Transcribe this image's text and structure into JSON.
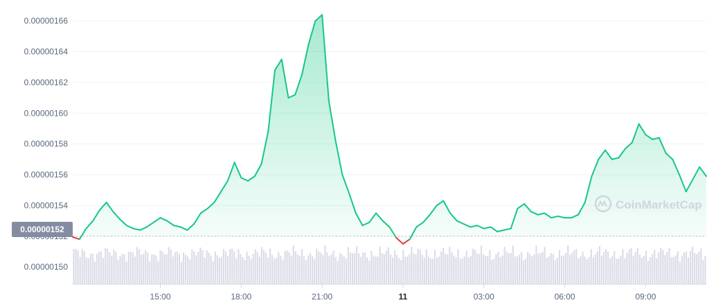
{
  "chart_data": {
    "type": "area",
    "title": "",
    "xlabel": "",
    "ylabel": "",
    "y_ticks": [
      "0.00000150",
      "0.00000152",
      "0.00000154",
      "0.00000156",
      "0.00000158",
      "0.00000160",
      "0.00000162",
      "0.00000164",
      "0.00000166"
    ],
    "ylim": [
      1.4888e-06,
      1.67e-06
    ],
    "x_ticks": [
      "15:00",
      "18:00",
      "21:00",
      "11",
      "03:00",
      "06:00",
      "09:00"
    ],
    "x_tick_hours": [
      15,
      18,
      21,
      24,
      27,
      30,
      33
    ],
    "x_bold_tick": "11",
    "xlim_hours": [
      11.75,
      35.25
    ],
    "reference_price": 1.52e-06,
    "current_price_label": "0.00000152",
    "watermark": "CoinMarketCap",
    "colors": {
      "up": "#16c784",
      "down": "#ea3943",
      "volume": "#dadde7",
      "label_bg": "#858ca2"
    },
    "series": [
      {
        "x_hours": [
          11.75,
          12.0,
          12.25,
          12.5,
          12.75,
          13.0,
          13.25,
          13.5,
          13.75,
          14.0,
          14.25,
          14.5,
          14.75,
          15.0,
          15.25,
          15.5,
          15.75,
          16.0,
          16.25,
          16.5,
          16.75,
          17.0,
          17.25,
          17.5,
          17.75,
          18.0,
          18.25,
          18.5,
          18.75,
          19.0,
          19.25,
          19.5,
          19.75,
          20.0,
          20.25,
          20.5,
          20.75,
          21.0,
          21.25,
          21.5,
          21.75,
          22.0,
          22.25,
          22.5,
          22.75,
          23.0,
          23.25,
          23.5,
          23.75,
          24.0,
          24.25,
          24.5,
          24.75,
          25.0,
          25.25,
          25.5,
          25.75,
          26.0,
          26.25,
          26.5,
          26.75,
          27.0,
          27.25,
          27.5,
          27.75,
          28.0,
          28.25,
          28.5,
          28.75,
          29.0,
          29.25,
          29.5,
          29.75,
          30.0,
          30.25,
          30.5,
          30.75,
          31.0,
          31.25,
          31.5,
          31.75,
          32.0,
          32.25,
          32.5,
          32.75,
          33.0,
          33.25,
          33.5,
          33.75,
          34.0,
          34.25,
          34.5,
          34.75,
          35.0,
          35.25
        ],
        "values": [
          1.5195e-06,
          1.518e-06,
          1.525e-06,
          1.53e-06,
          1.537e-06,
          1.542e-06,
          1.536e-06,
          1.531e-06,
          1.527e-06,
          1.525e-06,
          1.524e-06,
          1.526e-06,
          1.529e-06,
          1.532e-06,
          1.53e-06,
          1.527e-06,
          1.526e-06,
          1.524e-06,
          1.528e-06,
          1.535e-06,
          1.538e-06,
          1.542e-06,
          1.549e-06,
          1.556e-06,
          1.568e-06,
          1.558e-06,
          1.556e-06,
          1.559e-06,
          1.567e-06,
          1.588e-06,
          1.628e-06,
          1.635e-06,
          1.61e-06,
          1.612e-06,
          1.625e-06,
          1.645e-06,
          1.66e-06,
          1.664e-06,
          1.608e-06,
          1.582e-06,
          1.56e-06,
          1.548e-06,
          1.535e-06,
          1.527e-06,
          1.529e-06,
          1.535e-06,
          1.53e-06,
          1.526e-06,
          1.519e-06,
          1.515e-06,
          1.518e-06,
          1.526e-06,
          1.529e-06,
          1.534e-06,
          1.54e-06,
          1.543e-06,
          1.535e-06,
          1.53e-06,
          1.528e-06,
          1.526e-06,
          1.527e-06,
          1.525e-06,
          1.526e-06,
          1.523e-06,
          1.524e-06,
          1.525e-06,
          1.538e-06,
          1.541e-06,
          1.536e-06,
          1.534e-06,
          1.535e-06,
          1.532e-06,
          1.533e-06,
          1.532e-06,
          1.532e-06,
          1.534e-06,
          1.542e-06,
          1.559e-06,
          1.57e-06,
          1.576e-06,
          1.57e-06,
          1.571e-06,
          1.577e-06,
          1.581e-06,
          1.593e-06,
          1.586e-06,
          1.583e-06,
          1.584e-06,
          1.574e-06,
          1.57e-06,
          1.56e-06,
          1.549e-06,
          1.557e-06,
          1.565e-06,
          1.559e-06
        ]
      }
    ],
    "volume_bar_count": 300
  }
}
